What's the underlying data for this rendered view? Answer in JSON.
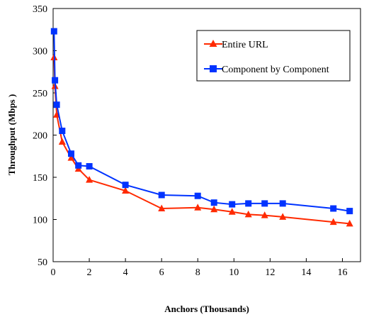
{
  "chart_data": {
    "type": "line",
    "title": "",
    "xlabel": "Anchors (Thousands)",
    "ylabel": "Throughput (Mbps )",
    "xlim": [
      0,
      17
    ],
    "ylim": [
      50,
      350
    ],
    "xticks": [
      0,
      2,
      4,
      6,
      8,
      10,
      12,
      14,
      16
    ],
    "yticks": [
      50,
      100,
      150,
      200,
      250,
      300,
      350
    ],
    "grid": false,
    "legend_position": "top-right",
    "series": [
      {
        "name": "Entire URL",
        "color": "#ff2a00",
        "marker": "triangle",
        "x": [
          0.05,
          0.1,
          0.2,
          0.5,
          1.0,
          1.4,
          2.0,
          4.0,
          6.0,
          8.0,
          8.9,
          9.9,
          10.8,
          11.7,
          12.7,
          15.5,
          16.4
        ],
        "y": [
          292,
          258,
          224,
          192,
          173,
          160,
          147,
          134,
          113,
          114,
          112,
          109,
          106,
          105,
          103,
          97,
          95
        ]
      },
      {
        "name": "Component by Component",
        "color": "#0033ff",
        "marker": "square",
        "x": [
          0.05,
          0.1,
          0.2,
          0.5,
          1.0,
          1.4,
          2.0,
          4.0,
          6.0,
          8.0,
          8.9,
          9.9,
          10.8,
          11.7,
          12.7,
          15.5,
          16.4
        ],
        "y": [
          323,
          265,
          236,
          205,
          178,
          164,
          163,
          141,
          129,
          128,
          120,
          118,
          119,
          119,
          119,
          113,
          110
        ]
      }
    ]
  }
}
